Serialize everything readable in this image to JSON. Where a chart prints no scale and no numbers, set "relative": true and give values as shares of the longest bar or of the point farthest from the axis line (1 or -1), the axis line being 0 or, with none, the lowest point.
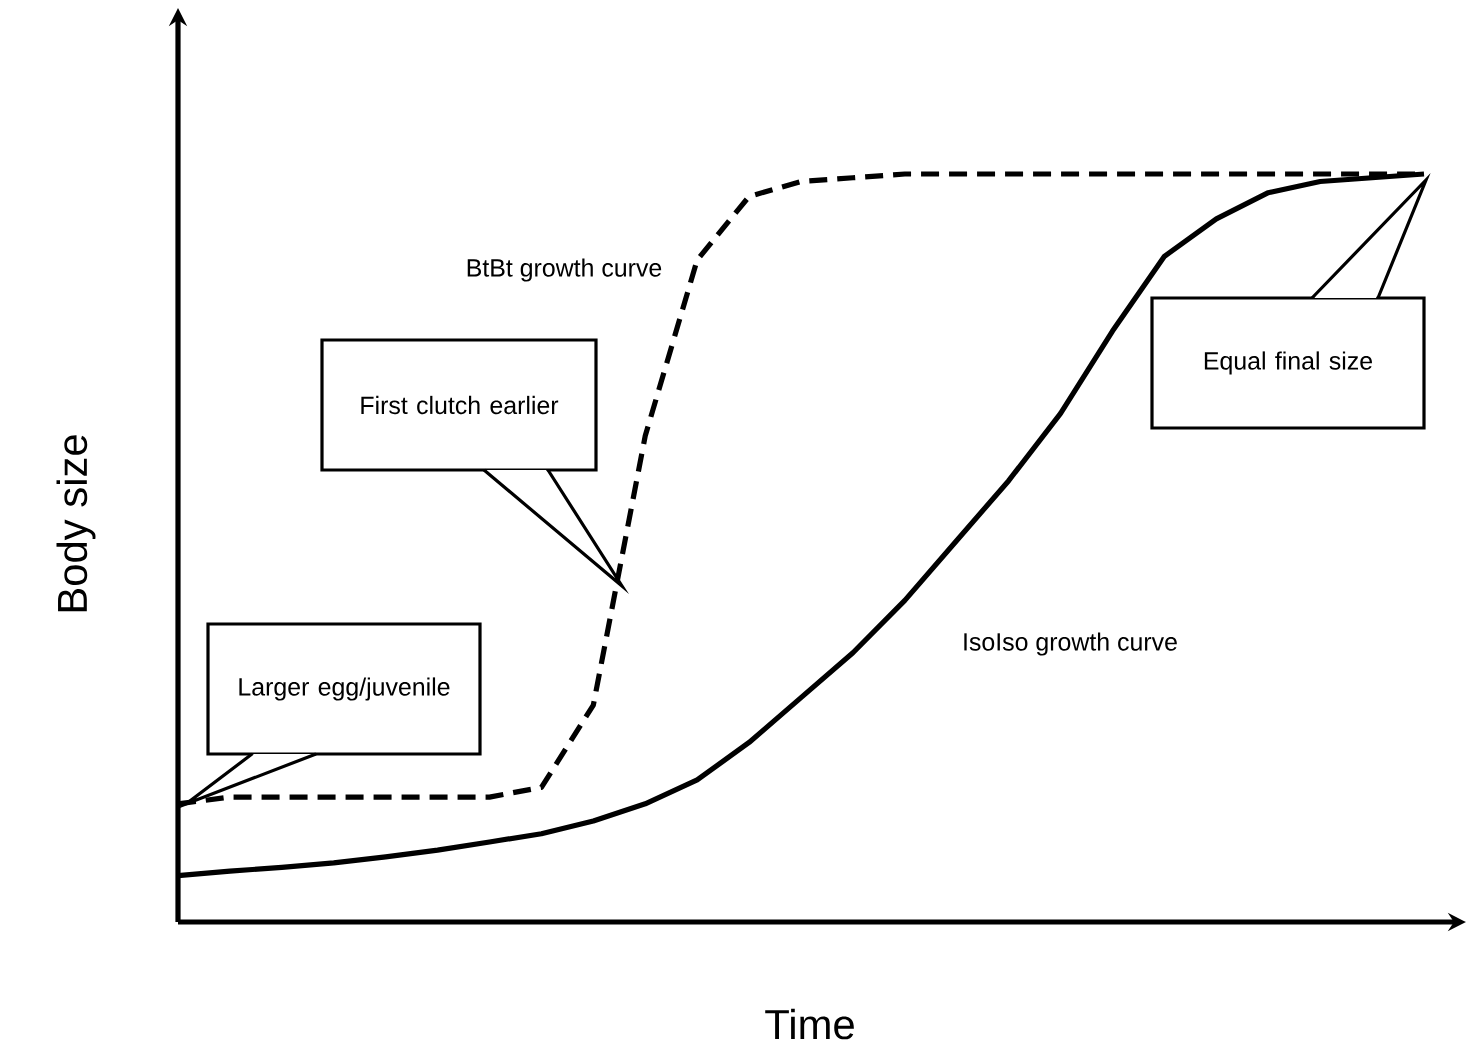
{
  "chart_data": {
    "type": "line",
    "relative": true,
    "xlabel": "Time",
    "ylabel": "Body size",
    "categories": [
      null,
      null,
      null,
      null,
      null,
      null,
      null,
      null,
      null,
      null,
      null,
      null,
      null,
      null,
      null,
      null,
      null,
      null,
      null,
      null,
      null,
      null,
      null,
      null,
      null
    ],
    "series": [
      {
        "name": "BtBt growth curve",
        "color": "#000000",
        "line_style": "dashed",
        "values": [
          0.158,
          0.167,
          0.167,
          0.167,
          0.167,
          0.167,
          0.167,
          0.18,
          0.29,
          0.65,
          0.885,
          0.97,
          0.99,
          0.995,
          1,
          1,
          1,
          1,
          1,
          1,
          1,
          1,
          1,
          1,
          1
        ]
      },
      {
        "name": "IsoIso growth curve",
        "color": "#000000",
        "line_style": "solid",
        "values": [
          0.062,
          0.068,
          0.073,
          0.079,
          0.087,
          0.096,
          0.107,
          0.118,
          0.135,
          0.158,
          0.19,
          0.24,
          0.3,
          0.36,
          0.43,
          0.51,
          0.59,
          0.68,
          0.79,
          0.89,
          0.94,
          0.975,
          0.99,
          0.995,
          1
        ]
      }
    ],
    "annotations": [
      "Larger egg/juvenile",
      "First clutch earlier",
      "Equal final size"
    ]
  }
}
